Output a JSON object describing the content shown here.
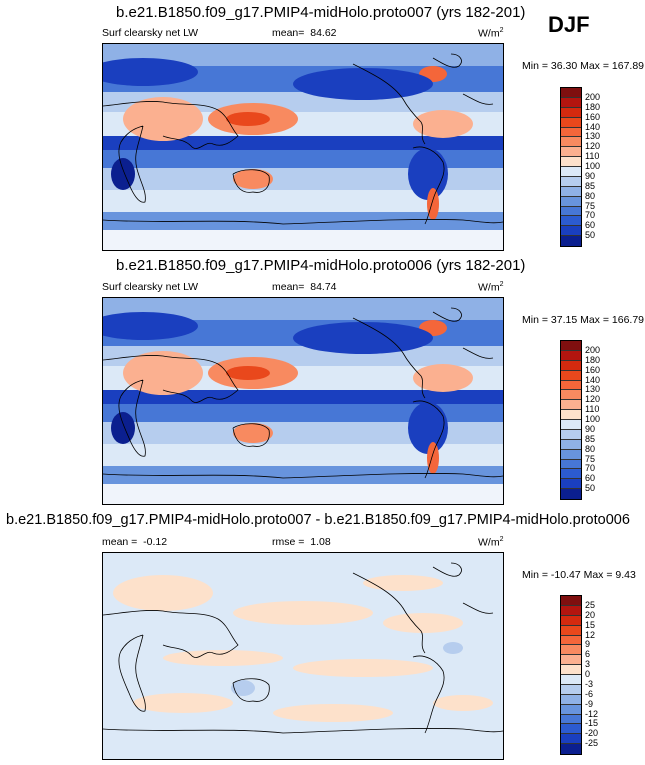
{
  "season": "DJF",
  "chart_data": [
    {
      "type": "heatmap",
      "title": "b.e21.B1850.f09_g17.PMIP4-midHolo.proto007 (yrs 182-201)",
      "variable": "Surf clearsky net LW",
      "mean_label": "mean=",
      "mean_value": "84.62",
      "units": "W/m",
      "units_sup": "2",
      "min_label": "Min =",
      "min_value": "36.30",
      "max_label": "Max =",
      "max_value": "167.89",
      "colorbar_levels": [
        "200",
        "180",
        "160",
        "140",
        "130",
        "120",
        "110",
        "100",
        "90",
        "85",
        "80",
        "75",
        "70",
        "60",
        "50"
      ],
      "colorbar_colors": [
        "#7f0f0f",
        "#b3150f",
        "#d42a0f",
        "#e9481c",
        "#f4663a",
        "#f88a60",
        "#fbb090",
        "#fde1cb",
        "#dce9f7",
        "#b6cdee",
        "#8fb1e6",
        "#6894dd",
        "#4777d6",
        "#2c5bd0",
        "#1a3fbf",
        "#0b1f8f"
      ]
    },
    {
      "type": "heatmap",
      "title": "b.e21.B1850.f09_g17.PMIP4-midHolo.proto006 (yrs 182-201)",
      "variable": "Surf clearsky net LW",
      "mean_label": "mean=",
      "mean_value": "84.74",
      "units": "W/m",
      "units_sup": "2",
      "min_label": "Min =",
      "min_value": "37.15",
      "max_label": "Max =",
      "max_value": "166.79",
      "colorbar_levels": [
        "200",
        "180",
        "160",
        "140",
        "130",
        "120",
        "110",
        "100",
        "90",
        "85",
        "80",
        "75",
        "70",
        "60",
        "50"
      ],
      "colorbar_colors": [
        "#7f0f0f",
        "#b3150f",
        "#d42a0f",
        "#e9481c",
        "#f4663a",
        "#f88a60",
        "#fbb090",
        "#fde1cb",
        "#dce9f7",
        "#b6cdee",
        "#8fb1e6",
        "#6894dd",
        "#4777d6",
        "#2c5bd0",
        "#1a3fbf",
        "#0b1f8f"
      ]
    },
    {
      "type": "heatmap",
      "title": "b.e21.B1850.f09_g17.PMIP4-midHolo.proto007 - b.e21.B1850.f09_g17.PMIP4-midHolo.proto006",
      "mean_label": "mean =",
      "mean_value": "-0.12",
      "rmse_label": "rmse =",
      "rmse_value": "1.08",
      "units": "W/m",
      "units_sup": "2",
      "min_label": "Min =",
      "min_value": "-10.47",
      "max_label": "Max =",
      "max_value": "9.43",
      "colorbar_levels": [
        "25",
        "20",
        "15",
        "12",
        "9",
        "6",
        "3",
        "0",
        "-3",
        "-6",
        "-9",
        "-12",
        "-15",
        "-20",
        "-25"
      ],
      "colorbar_colors": [
        "#7f0f0f",
        "#b3150f",
        "#d42a0f",
        "#e9481c",
        "#f4663a",
        "#f88a60",
        "#fbb090",
        "#fde1cb",
        "#dce9f7",
        "#b6cdee",
        "#8fb1e6",
        "#6894dd",
        "#4777d6",
        "#2c5bd0",
        "#1a3fbf",
        "#0b1f8f"
      ]
    }
  ]
}
